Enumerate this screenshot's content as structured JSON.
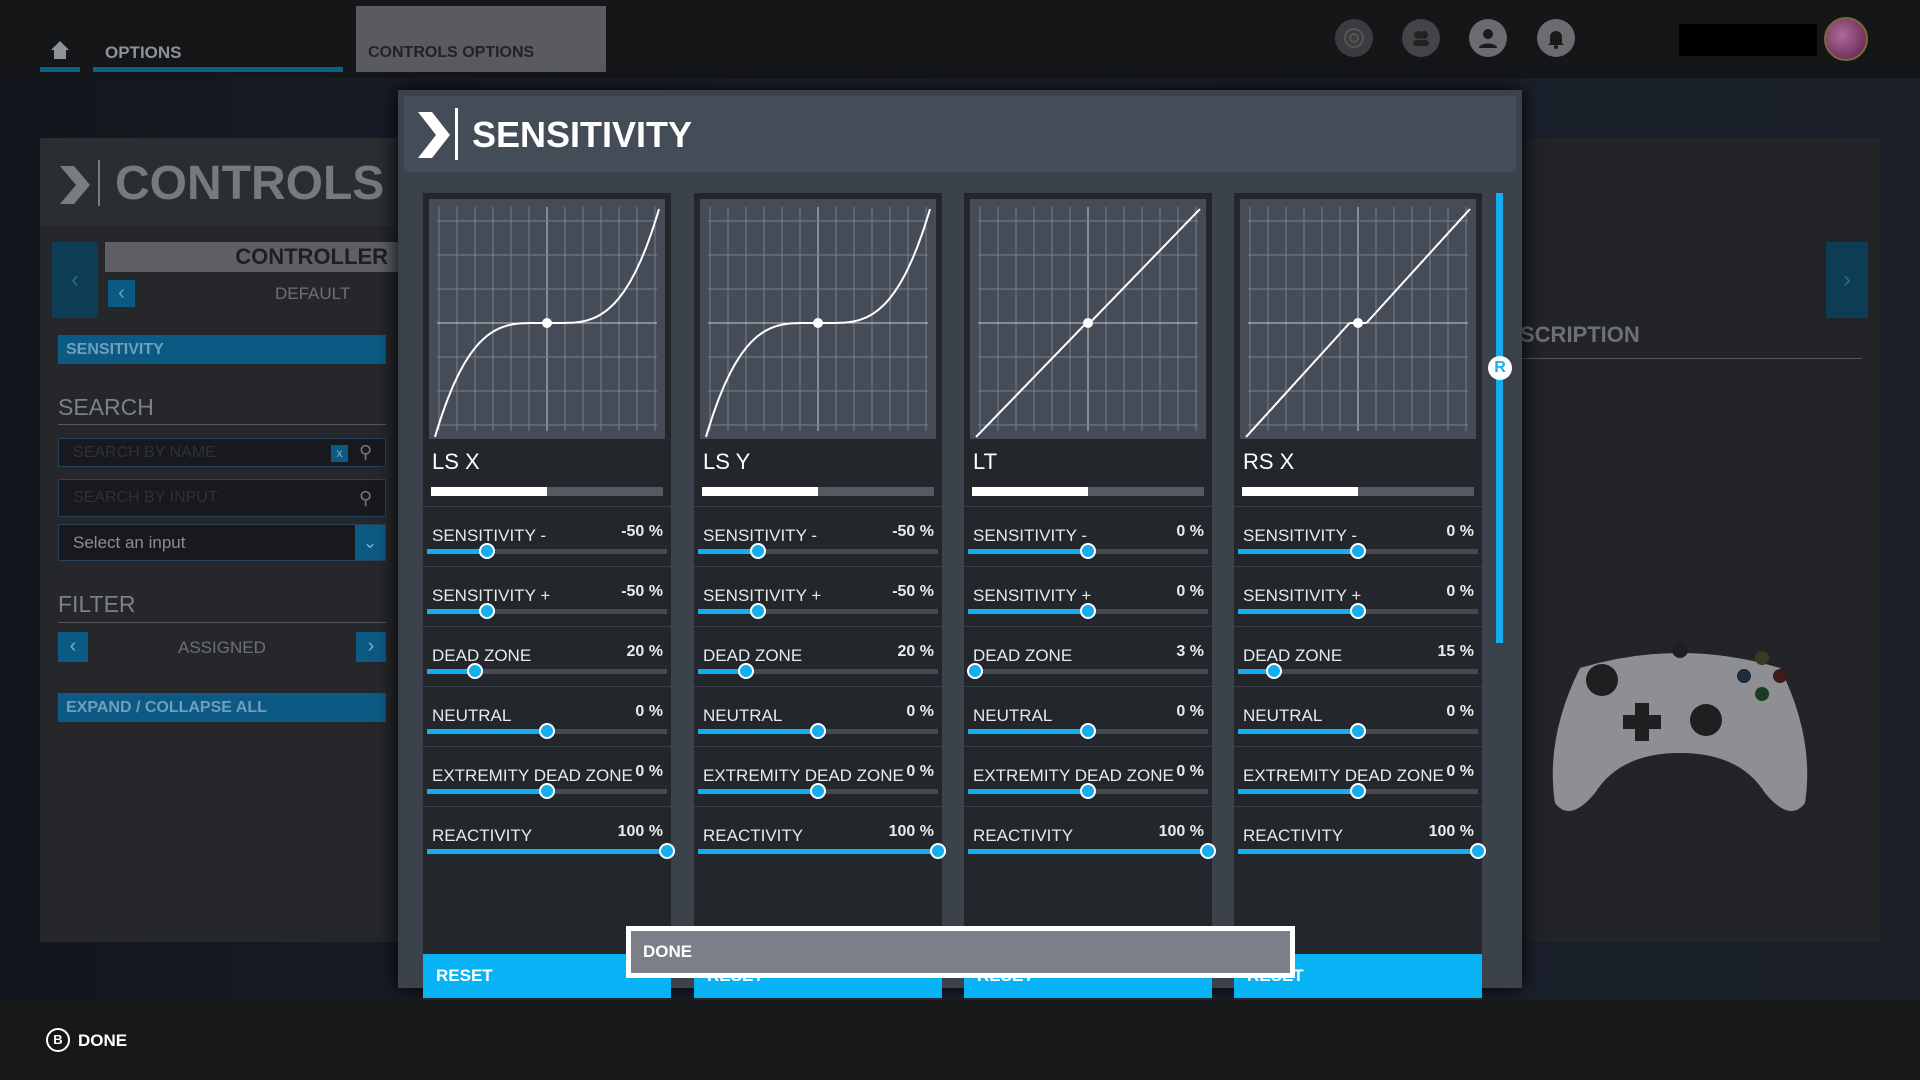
{
  "topbar": {
    "home_icon": "home-icon",
    "options": "OPTIONS",
    "controls_options": "CONTROLS OPTIONS",
    "icons": [
      "activity-icon",
      "friends-icon",
      "profile-icon",
      "notification-bell-icon"
    ]
  },
  "left": {
    "title": "CONTROLS C",
    "device": "CONTROLLER",
    "profile": "DEFAULT",
    "category": "SENSITIVITY",
    "search_heading": "SEARCH",
    "search_name_placeholder": "SEARCH BY NAME",
    "clear_label": "x",
    "search_input_placeholder": "SEARCH BY INPUT",
    "select_input": "Select an input",
    "filter_heading": "FILTER",
    "filter_value": "ASSIGNED",
    "expand": "EXPAND / COLLAPSE ALL"
  },
  "right": {
    "heading": "SCRIPTION"
  },
  "modal": {
    "title": "SENSITIVITY",
    "done": "DONE"
  },
  "accent": "#14aeef",
  "columns": [
    {
      "axis": "LS X",
      "input_level": 0.5,
      "reset": "RESET",
      "settings": [
        {
          "label": "SENSITIVITY -",
          "value": "-50 %",
          "num": -50,
          "min": -100,
          "max": 100
        },
        {
          "label": "SENSITIVITY +",
          "value": "-50 %",
          "num": -50,
          "min": -100,
          "max": 100
        },
        {
          "label": "DEAD ZONE",
          "value": "20 %",
          "num": 20,
          "min": 0,
          "max": 100
        },
        {
          "label": "NEUTRAL",
          "value": "0 %",
          "num": 0,
          "min": -100,
          "max": 100
        },
        {
          "label": "EXTREMITY DEAD ZONE",
          "value": "0 %",
          "num": 0,
          "min": -100,
          "max": 100
        },
        {
          "label": "REACTIVITY",
          "value": "100 %",
          "num": 100,
          "min": 0,
          "max": 100
        }
      ]
    },
    {
      "axis": "LS Y",
      "input_level": 0.5,
      "reset": "RESET",
      "settings": [
        {
          "label": "SENSITIVITY -",
          "value": "-50 %",
          "num": -50,
          "min": -100,
          "max": 100
        },
        {
          "label": "SENSITIVITY +",
          "value": "-50 %",
          "num": -50,
          "min": -100,
          "max": 100
        },
        {
          "label": "DEAD ZONE",
          "value": "20 %",
          "num": 20,
          "min": 0,
          "max": 100
        },
        {
          "label": "NEUTRAL",
          "value": "0 %",
          "num": 0,
          "min": -100,
          "max": 100
        },
        {
          "label": "EXTREMITY DEAD ZONE",
          "value": "0 %",
          "num": 0,
          "min": -100,
          "max": 100
        },
        {
          "label": "REACTIVITY",
          "value": "100 %",
          "num": 100,
          "min": 0,
          "max": 100
        }
      ]
    },
    {
      "axis": "LT",
      "input_level": 0.5,
      "reset": "RESET",
      "settings": [
        {
          "label": "SENSITIVITY -",
          "value": "0 %",
          "num": 0,
          "min": -100,
          "max": 100
        },
        {
          "label": "SENSITIVITY +",
          "value": "0 %",
          "num": 0,
          "min": -100,
          "max": 100
        },
        {
          "label": "DEAD ZONE",
          "value": "3 %",
          "num": 3,
          "min": 0,
          "max": 100
        },
        {
          "label": "NEUTRAL",
          "value": "0 %",
          "num": 0,
          "min": -100,
          "max": 100
        },
        {
          "label": "EXTREMITY DEAD ZONE",
          "value": "0 %",
          "num": 0,
          "min": -100,
          "max": 100
        },
        {
          "label": "REACTIVITY",
          "value": "100 %",
          "num": 100,
          "min": 0,
          "max": 100
        }
      ]
    },
    {
      "axis": "RS X",
      "input_level": 0.5,
      "reset": "RESET",
      "settings": [
        {
          "label": "SENSITIVITY -",
          "value": "0 %",
          "num": 0,
          "min": -100,
          "max": 100
        },
        {
          "label": "SENSITIVITY +",
          "value": "0 %",
          "num": 0,
          "min": -100,
          "max": 100
        },
        {
          "label": "DEAD ZONE",
          "value": "15 %",
          "num": 15,
          "min": 0,
          "max": 100
        },
        {
          "label": "NEUTRAL",
          "value": "0 %",
          "num": 0,
          "min": -100,
          "max": 100
        },
        {
          "label": "EXTREMITY DEAD ZONE",
          "value": "0 %",
          "num": 0,
          "min": -100,
          "max": 100
        },
        {
          "label": "REACTIVITY",
          "value": "100 %",
          "num": 100,
          "min": 0,
          "max": 100
        }
      ]
    }
  ],
  "scrollbar": {
    "knob_label": "R"
  },
  "footer": {
    "button_glyph": "B",
    "done": "DONE"
  }
}
